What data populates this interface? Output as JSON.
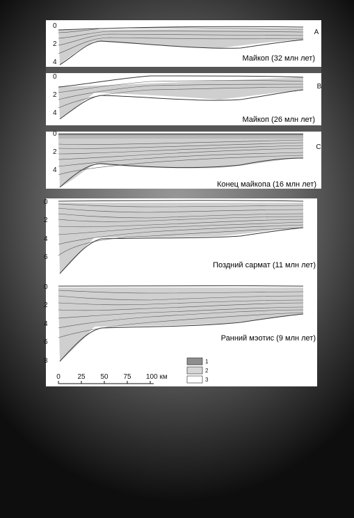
{
  "sections": [
    {
      "letter": "A",
      "caption": "Майкоп (32 млн лет)",
      "ticks": [
        "0",
        "2",
        "4"
      ]
    },
    {
      "letter": "B",
      "caption": "Майкоп (26 млн лет)",
      "ticks": [
        "0",
        "2",
        "4"
      ]
    },
    {
      "letter": "C",
      "caption": "Конец майкопа (16 млн лет)",
      "ticks": [
        "0",
        "2",
        "4"
      ]
    },
    {
      "letter": "",
      "caption": "Поздний сармат (11 млн лет)",
      "ticks": [
        "0",
        "2",
        "4",
        "6"
      ]
    },
    {
      "letter": "",
      "caption": "Ранний мэотис (9 млн лет)",
      "ticks": [
        "0",
        "2",
        "4",
        "6",
        "8"
      ]
    }
  ],
  "scale": {
    "ticks": [
      "0",
      "25",
      "50",
      "75",
      "100 км"
    ]
  },
  "legend": [
    {
      "num": "1",
      "color": "#8e8e8e"
    },
    {
      "num": "2",
      "color": "#d6d6d6"
    },
    {
      "num": "3",
      "color": "#ffffff"
    }
  ]
}
